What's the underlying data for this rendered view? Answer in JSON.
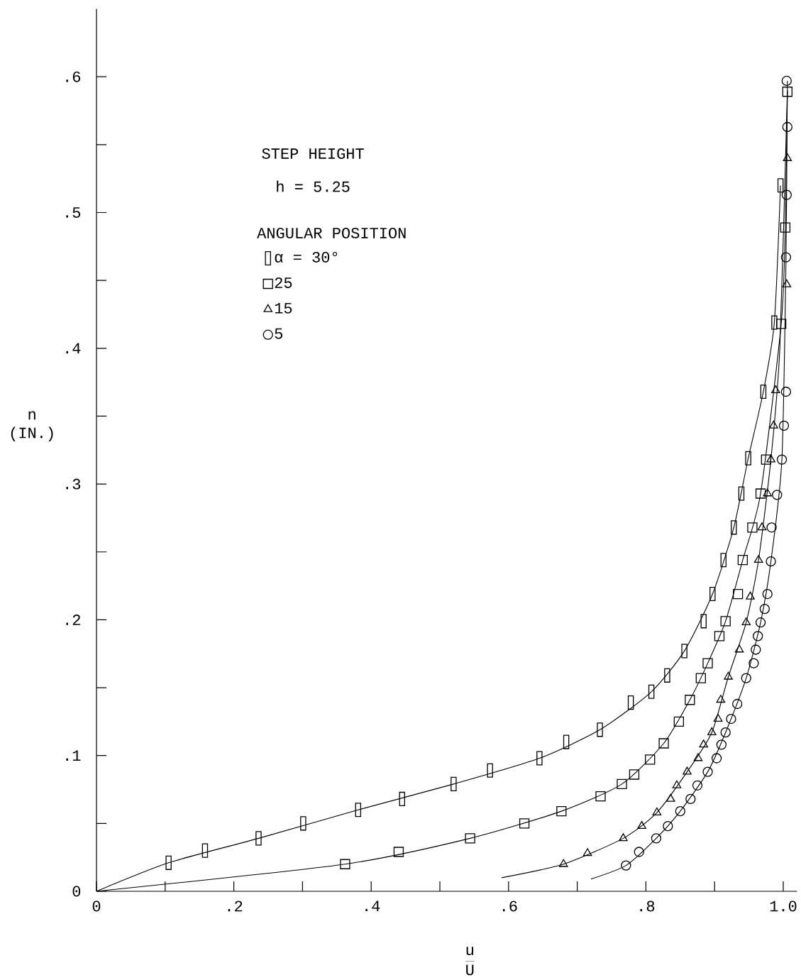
{
  "chart_data": {
    "type": "scatter",
    "xlabel": "\\frac{\\mathrm{u}}{\\mathrm{U}}",
    "ylabel": "n (IN.)",
    "legend_title": "ANGULAR POSITION",
    "annotations": [
      "STEP HEIGHT",
      "h = 5.25"
    ],
    "xlim": [
      0,
      1.02
    ],
    "ylim": [
      0,
      0.65
    ],
    "xticks": [
      0,
      {
        "value": 0.1,
        "label": null
      },
      {
        "value": 0.2,
        "label": ".2"
      },
      {
        "value": 0.3,
        "label": null
      },
      {
        "value": 0.4,
        "label": ".4"
      },
      {
        "value": 0.5,
        "label": null
      },
      {
        "value": 0.6,
        "label": ".6"
      },
      {
        "value": 0.7,
        "label": null
      },
      {
        "value": 0.8,
        "label": ".8"
      },
      {
        "value": 0.9,
        "label": null
      },
      {
        "value": 1.0,
        "label": "1.0"
      }
    ],
    "yticks": [
      0,
      {
        "value": 0.05,
        "label": null
      },
      {
        "value": 0.1,
        "label": ".1"
      },
      {
        "value": 0.15,
        "label": null
      },
      {
        "value": 0.2,
        "label": ".2"
      },
      {
        "value": 0.25,
        "label": null
      },
      {
        "value": 0.3,
        "label": ".3"
      },
      {
        "value": 0.35,
        "label": null
      },
      {
        "value": 0.4,
        "label": ".4"
      },
      {
        "value": 0.45,
        "label": null
      },
      {
        "value": 0.5,
        "label": ".5"
      },
      {
        "value": 0.55,
        "label": null
      },
      {
        "value": 0.6,
        "label": ".6"
      }
    ],
    "legend": "top left",
    "grid": false,
    "series": [
      {
        "name": "α = 30°",
        "marker": "rectangle",
        "color": "#000000",
        "x": [
          0.105,
          0.158,
          0.236,
          0.301,
          0.381,
          0.445,
          0.52,
          0.573,
          0.645,
          0.684,
          0.733,
          0.778,
          0.808,
          0.831,
          0.856,
          0.884,
          0.897,
          0.913,
          0.928,
          0.939,
          0.949,
          0.971,
          0.987,
          0.996
        ],
        "values": [
          0.021,
          0.03,
          0.039,
          0.05,
          0.06,
          0.068,
          0.079,
          0.089,
          0.098,
          0.11,
          0.119,
          0.139,
          0.147,
          0.159,
          0.177,
          0.199,
          0.219,
          0.244,
          0.268,
          0.293,
          0.319,
          0.368,
          0.419,
          0.52
        ]
      },
      {
        "name": "25",
        "marker": "square",
        "color": "#000000",
        "x": [
          0.362,
          0.44,
          0.544,
          0.623,
          0.677,
          0.734,
          0.765,
          0.783,
          0.806,
          0.826,
          0.848,
          0.864,
          0.88,
          0.89,
          0.907,
          0.916,
          0.934,
          0.941,
          0.955,
          0.967,
          0.975,
          0.997,
          1.003,
          1.006
        ],
        "values": [
          0.02,
          0.029,
          0.039,
          0.05,
          0.059,
          0.07,
          0.079,
          0.086,
          0.097,
          0.109,
          0.125,
          0.141,
          0.157,
          0.168,
          0.188,
          0.199,
          0.219,
          0.244,
          0.268,
          0.293,
          0.318,
          0.418,
          0.489,
          0.589
        ]
      },
      {
        "name": "15",
        "marker": "triangle",
        "color": "#000000",
        "x": [
          0.68,
          0.715,
          0.767,
          0.794,
          0.816,
          0.836,
          0.845,
          0.86,
          0.876,
          0.884,
          0.896,
          0.905,
          0.909,
          0.92,
          0.936,
          0.946,
          0.952,
          0.964,
          0.969,
          0.977,
          0.982,
          0.986,
          0.989,
          1.005,
          1.006
        ],
        "values": [
          0.02,
          0.028,
          0.039,
          0.048,
          0.058,
          0.068,
          0.078,
          0.088,
          0.098,
          0.108,
          0.117,
          0.127,
          0.141,
          0.158,
          0.178,
          0.198,
          0.217,
          0.244,
          0.268,
          0.293,
          0.318,
          0.343,
          0.369,
          0.447,
          0.54
        ]
      },
      {
        "name": "5",
        "marker": "circle",
        "color": "#000000",
        "x": [
          0.771,
          0.79,
          0.815,
          0.832,
          0.85,
          0.865,
          0.875,
          0.89,
          0.903,
          0.91,
          0.916,
          0.924,
          0.933,
          0.946,
          0.957,
          0.96,
          0.963,
          0.967,
          0.973,
          0.977,
          0.982,
          0.983,
          0.991,
          0.998,
          1.001,
          1.004,
          1.004,
          1.005,
          1.006,
          1.005
        ],
        "values": [
          0.019,
          0.029,
          0.039,
          0.048,
          0.059,
          0.068,
          0.078,
          0.088,
          0.098,
          0.108,
          0.117,
          0.127,
          0.138,
          0.157,
          0.168,
          0.178,
          0.188,
          0.198,
          0.208,
          0.219,
          0.243,
          0.268,
          0.292,
          0.318,
          0.343,
          0.368,
          0.467,
          0.513,
          0.563,
          0.597
        ]
      },
      {
        "type": "line",
        "marker": "none",
        "color": "#000000",
        "x": [
          0,
          0.105,
          0.236,
          0.381,
          0.52,
          0.645,
          0.733,
          0.808,
          0.856,
          0.897,
          0.928,
          0.949,
          0.971,
          0.987,
          0.996
        ],
        "values": [
          0,
          0.021,
          0.039,
          0.06,
          0.079,
          0.098,
          0.119,
          0.147,
          0.177,
          0.219,
          0.268,
          0.319,
          0.368,
          0.419,
          0.52
        ]
      },
      {
        "type": "line",
        "marker": "none",
        "color": "#000000",
        "x": [
          0,
          0.362,
          0.544,
          0.677,
          0.765,
          0.826,
          0.864,
          0.89,
          0.916,
          0.941,
          0.967,
          0.997,
          1.003,
          1.006
        ],
        "values": [
          0,
          0.02,
          0.039,
          0.059,
          0.079,
          0.109,
          0.141,
          0.168,
          0.199,
          0.244,
          0.293,
          0.418,
          0.489,
          0.589
        ]
      },
      {
        "type": "line",
        "marker": "none",
        "color": "#000000",
        "x": [
          0.59,
          0.68,
          0.767,
          0.816,
          0.86,
          0.896,
          0.92,
          0.946,
          0.964,
          0.982,
          0.995,
          1.006
        ],
        "values": [
          0.01,
          0.02,
          0.039,
          0.058,
          0.088,
          0.117,
          0.158,
          0.198,
          0.244,
          0.318,
          0.4,
          0.59
        ]
      },
      {
        "type": "line",
        "marker": "none",
        "color": "#000000",
        "x": [
          0.72,
          0.771,
          0.815,
          0.85,
          0.89,
          0.916,
          0.946,
          0.967,
          0.982,
          0.998,
          1.004,
          1.006
        ],
        "values": [
          0.009,
          0.019,
          0.039,
          0.059,
          0.088,
          0.117,
          0.157,
          0.198,
          0.243,
          0.318,
          0.467,
          0.597
        ]
      }
    ]
  }
}
